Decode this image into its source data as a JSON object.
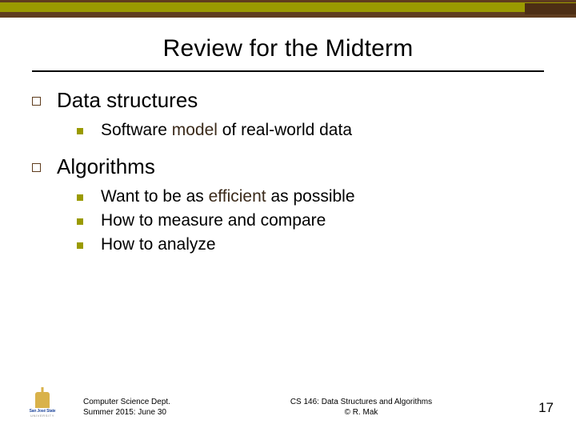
{
  "colors": {
    "brown": "#5f3c1e",
    "olive": "#9a9a00",
    "dark_brown": "#4d2e14",
    "emphasis_text": "#3b2a1a",
    "body_text": "#000000",
    "background": "#ffffff"
  },
  "typography": {
    "title_fontsize": 30,
    "level1_fontsize": 26,
    "level2_fontsize": 21,
    "footer_fontsize": 10,
    "pagenum_fontsize": 17,
    "font_family": "Arial"
  },
  "layout": {
    "slide_width": 720,
    "slide_height": 540,
    "title_rule_width": 640
  },
  "title": "Review for the Midterm",
  "items": [
    {
      "label": "Data structures",
      "children": [
        {
          "pre": "Software ",
          "emph": "model",
          "post": " of real-world data"
        }
      ]
    },
    {
      "label": "Algorithms",
      "children": [
        {
          "pre": "Want to be as ",
          "emph": "efficient",
          "post": " as possible"
        },
        {
          "pre": "How to measure and compare",
          "emph": "",
          "post": ""
        },
        {
          "pre": "How to analyze",
          "emph": "",
          "post": ""
        }
      ]
    }
  ],
  "footer": {
    "left_line1": "Computer Science Dept.",
    "left_line2": "Summer 2015: June 30",
    "center_line1": "CS 146: Data Structures and Algorithms",
    "center_line2": "© R. Mak",
    "page_number": "17",
    "logo_text1": "San José State",
    "logo_text2": "UNIVERSITY"
  }
}
